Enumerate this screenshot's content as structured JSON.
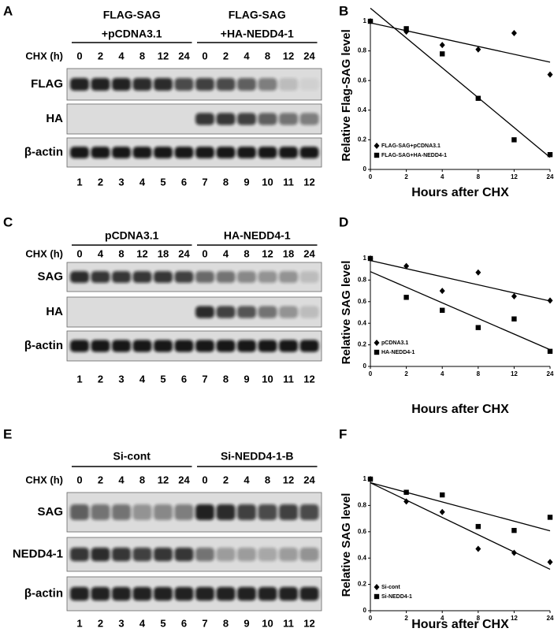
{
  "blots": [
    {
      "panel": "A",
      "groups": [
        {
          "lines": [
            "FLAG-SAG",
            "+pCDNA3.1"
          ]
        },
        {
          "lines": [
            "FLAG-SAG",
            "+HA-NEDD4-1"
          ]
        }
      ],
      "time_label": "CHX (h)",
      "times": [
        "0",
        "2",
        "4",
        "8",
        "12",
        "24",
        "0",
        "2",
        "4",
        "8",
        "12",
        "24"
      ],
      "rows": [
        "FLAG",
        "HA",
        "β-actin"
      ],
      "lanes": [
        "1",
        "2",
        "3",
        "4",
        "5",
        "6",
        "7",
        "8",
        "9",
        "10",
        "11",
        "12"
      ]
    },
    {
      "panel": "C",
      "groups": [
        {
          "lines": [
            "pCDNA3.1"
          ]
        },
        {
          "lines": [
            "HA-NEDD4-1"
          ]
        }
      ],
      "time_label": "CHX (h)",
      "times": [
        "0",
        "4",
        "8",
        "12",
        "18",
        "24",
        "0",
        "4",
        "8",
        "12",
        "18",
        "24"
      ],
      "rows": [
        "SAG",
        "HA",
        "β-actin"
      ],
      "lanes": [
        "1",
        "2",
        "3",
        "4",
        "5",
        "6",
        "7",
        "8",
        "9",
        "10",
        "11",
        "12"
      ]
    },
    {
      "panel": "E",
      "groups": [
        {
          "lines": [
            "Si-cont"
          ]
        },
        {
          "lines": [
            "Si-NEDD4-1-B"
          ]
        }
      ],
      "time_label": "CHX (h)",
      "times": [
        "0",
        "2",
        "4",
        "8",
        "12",
        "24",
        "0",
        "2",
        "4",
        "8",
        "12",
        "24"
      ],
      "rows": [
        "SAG",
        "NEDD4-1",
        "β-actin"
      ],
      "lanes": [
        "1",
        "2",
        "3",
        "4",
        "5",
        "6",
        "7",
        "8",
        "9",
        "10",
        "11",
        "12"
      ]
    }
  ],
  "chart_data": [
    {
      "type": "scatter",
      "panel": "B",
      "xlabel": "Hours after CHX",
      "ylabel": "Relative Flag-SAG level",
      "categories": [
        "0",
        "2",
        "4",
        "8",
        "12",
        "24"
      ],
      "ylim": [
        0,
        1
      ],
      "yticks": [
        0,
        0.2,
        0.4,
        0.6,
        0.8,
        1
      ],
      "trendline": true,
      "legend": "bottom-left",
      "series": [
        {
          "name": "FLAG-SAG+pCDNA3.1",
          "marker": "diamond",
          "color": "#000000",
          "values": [
            1,
            0.93,
            0.84,
            0.81,
            0.92,
            0.64
          ]
        },
        {
          "name": "FLAG-SAG+HA-NEDD4-1",
          "marker": "square",
          "color": "#000000",
          "values": [
            1,
            0.95,
            0.78,
            0.48,
            0.2,
            0.1
          ]
        }
      ]
    },
    {
      "type": "scatter",
      "panel": "D",
      "xlabel": "Hours after CHX",
      "ylabel": "Relative SAG level",
      "categories": [
        "0",
        "2",
        "4",
        "8",
        "12",
        "24"
      ],
      "ylim": [
        0,
        1
      ],
      "yticks": [
        0,
        0.2,
        0.4,
        0.6,
        0.8,
        1
      ],
      "trendline": true,
      "legend": "bottom-left",
      "series": [
        {
          "name": "pCDNA3.1",
          "marker": "diamond",
          "color": "#000000",
          "values": [
            1,
            0.93,
            0.7,
            0.87,
            0.65,
            0.61
          ]
        },
        {
          "name": "HA-NEDD4-1",
          "marker": "square",
          "color": "#000000",
          "values": [
            1,
            0.64,
            0.52,
            0.36,
            0.44,
            0.14
          ]
        }
      ]
    },
    {
      "type": "scatter",
      "panel": "F",
      "xlabel": "Hours after CHX",
      "ylabel": "Relative SAG level",
      "categories": [
        "0",
        "2",
        "4",
        "8",
        "12",
        "24"
      ],
      "ylim": [
        0,
        1
      ],
      "yticks": [
        0,
        0.2,
        0.4,
        0.6,
        0.8,
        1
      ],
      "trendline": true,
      "legend": "bottom-left",
      "series": [
        {
          "name": "Si-cont",
          "marker": "diamond",
          "color": "#000000",
          "values": [
            1,
            0.83,
            0.75,
            0.47,
            0.44,
            0.37
          ]
        },
        {
          "name": "Si-NEDD4-1",
          "marker": "square",
          "color": "#000000",
          "values": [
            1,
            0.9,
            0.88,
            0.64,
            0.61,
            0.71
          ]
        }
      ]
    }
  ]
}
